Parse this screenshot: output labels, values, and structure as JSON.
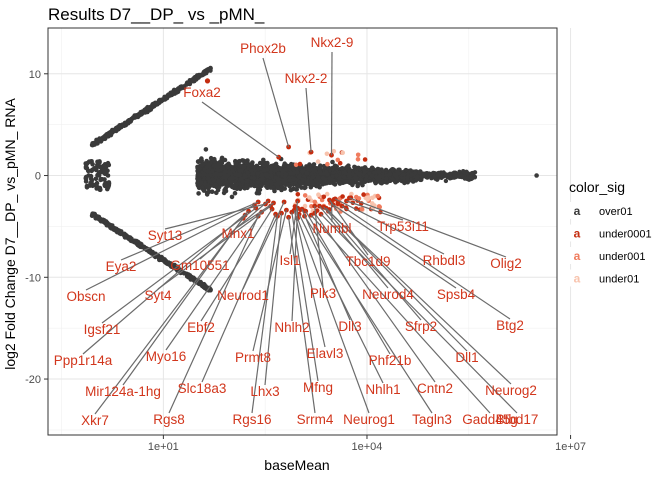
{
  "chart_data": {
    "type": "scatter",
    "title": "Results D7__DP_ vs _pMN_",
    "xlabel": "baseMean",
    "ylabel": "log2 Fold Change D7__DP_ vs_pMN_ RNA",
    "x_scale": "log10",
    "xlim_log10": [
      -0.7,
      6.8
    ],
    "ylim": [
      -25.5,
      14.5
    ],
    "x_ticks": [
      {
        "value": 10,
        "label": "1e+01"
      },
      {
        "value": 10000,
        "label": "1e+04"
      },
      {
        "value": 10000000,
        "label": "1e+07"
      }
    ],
    "y_ticks": [
      {
        "value": 10,
        "label": "10"
      },
      {
        "value": 0,
        "label": "0"
      },
      {
        "value": -10,
        "label": "-10"
      },
      {
        "value": -20,
        "label": "-20"
      }
    ],
    "grid": true,
    "legend": {
      "title": "color_sig",
      "placement": "right",
      "glyph": "a",
      "entries": [
        {
          "name": "over01",
          "color": "#3a3a3a"
        },
        {
          "name": "under0001",
          "color": "#c42d10"
        },
        {
          "name": "under001",
          "color": "#f07c5e"
        },
        {
          "name": "under01",
          "color": "#f8c3ad"
        }
      ]
    },
    "labeled_points": [
      {
        "label": "Phox2b",
        "x": 700,
        "y": 2.8
      },
      {
        "label": "Nkx2-9",
        "x": 3000,
        "y": 2.0
      },
      {
        "label": "Nkx2-2",
        "x": 1500,
        "y": 2.3
      },
      {
        "label": "Foxa2",
        "x": 500,
        "y": 1.8
      },
      {
        "label": "Syt13",
        "x": 320,
        "y": -2.8
      },
      {
        "label": "Mnx1",
        "x": 420,
        "y": -2.7
      },
      {
        "label": "Numbl",
        "x": 3000,
        "y": -2.6
      },
      {
        "label": "Trp53i11",
        "x": 5000,
        "y": -2.5
      },
      {
        "label": "Eya2",
        "x": 250,
        "y": -2.6
      },
      {
        "label": "Gm10551",
        "x": 350,
        "y": -2.5
      },
      {
        "label": "Isl1",
        "x": 950,
        "y": -2.5
      },
      {
        "label": "Tbc1d9",
        "x": 2800,
        "y": -2.4
      },
      {
        "label": "Rhbdl3",
        "x": 3400,
        "y": -2.3
      },
      {
        "label": "Olig2",
        "x": 5500,
        "y": -2.2
      },
      {
        "label": "Obscn",
        "x": 220,
        "y": -2.9
      },
      {
        "label": "Syt4",
        "x": 380,
        "y": -3.0
      },
      {
        "label": "Neurod1",
        "x": 600,
        "y": -2.6
      },
      {
        "label": "Plk3",
        "x": 1700,
        "y": -3.0
      },
      {
        "label": "Neurod4",
        "x": 2000,
        "y": -3.0
      },
      {
        "label": "Spsb4",
        "x": 3200,
        "y": -2.9
      },
      {
        "label": "Igsf21",
        "x": 230,
        "y": -3.2
      },
      {
        "label": "Ebf2",
        "x": 400,
        "y": -3.3
      },
      {
        "label": "Nhlh2",
        "x": 950,
        "y": -3.2
      },
      {
        "label": "Dll3",
        "x": 1100,
        "y": -3.3
      },
      {
        "label": "Sfrp2",
        "x": 2300,
        "y": -3.1
      },
      {
        "label": "Btg2",
        "x": 4300,
        "y": -3.0
      },
      {
        "label": "Ppp1r14a",
        "x": 180,
        "y": -3.5
      },
      {
        "label": "Myo16",
        "x": 280,
        "y": -3.6
      },
      {
        "label": "Prmt8",
        "x": 650,
        "y": -3.4
      },
      {
        "label": "Elavl3",
        "x": 850,
        "y": -3.4
      },
      {
        "label": "Phf21b",
        "x": 1250,
        "y": -3.5
      },
      {
        "label": "Dll1",
        "x": 2500,
        "y": -3.2
      },
      {
        "label": "Mir124a-1hg",
        "x": 160,
        "y": -3.9
      },
      {
        "label": "Slc18a3",
        "x": 450,
        "y": -3.8
      },
      {
        "label": "Lhx3",
        "x": 550,
        "y": -3.7
      },
      {
        "label": "Mfng",
        "x": 780,
        "y": -3.6
      },
      {
        "label": "Nhlh1",
        "x": 1000,
        "y": -3.8
      },
      {
        "label": "Cntn2",
        "x": 1700,
        "y": -3.7
      },
      {
        "label": "Neurog2",
        "x": 2700,
        "y": -3.5
      },
      {
        "label": "Xkr7",
        "x": 150,
        "y": -4.2
      },
      {
        "label": "Rgs8",
        "x": 250,
        "y": -4.0
      },
      {
        "label": "Rgs16",
        "x": 480,
        "y": -4.0
      },
      {
        "label": "Srrm4",
        "x": 700,
        "y": -4.1
      },
      {
        "label": "Neurog1",
        "x": 950,
        "y": -4.2
      },
      {
        "label": "Tagln3",
        "x": 1200,
        "y": -4.0
      },
      {
        "label": "Gadd45g",
        "x": 1500,
        "y": -3.9
      },
      {
        "label": "Btbd17",
        "x": 2100,
        "y": -3.8
      }
    ]
  }
}
